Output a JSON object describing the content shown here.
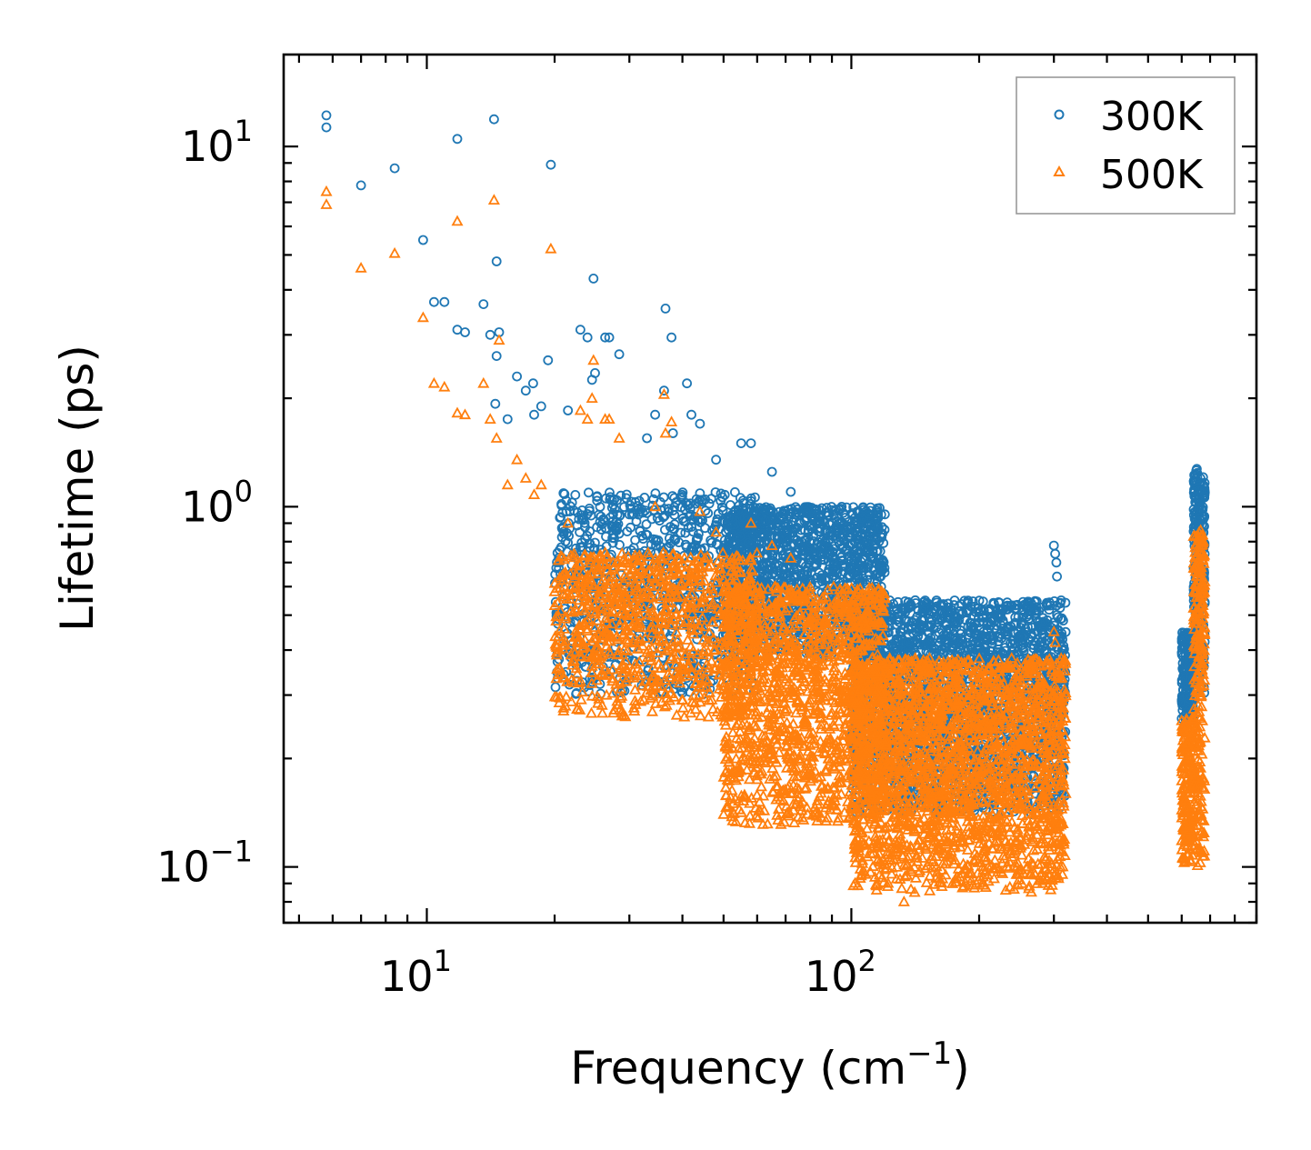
{
  "chart_data": {
    "type": "scatter",
    "xscale": "log",
    "yscale": "log",
    "xlim": [
      4.6,
      900
    ],
    "ylim": [
      0.07,
      18
    ],
    "xlabel": "Frequency (cm",
    "xlabel_sup": "−1",
    "xlabel_end": ")",
    "ylabel": "Lifetime (ps)",
    "x_ticks": [
      {
        "value": 10,
        "base": "10",
        "exp": "1"
      },
      {
        "value": 100,
        "base": "10",
        "exp": "2"
      }
    ],
    "y_ticks": [
      {
        "value": 0.1,
        "base": "10",
        "exp": "−1"
      },
      {
        "value": 1,
        "base": "10",
        "exp": "0"
      },
      {
        "value": 10,
        "base": "10",
        "exp": "1"
      }
    ],
    "legend_position": "top-right",
    "series": [
      {
        "name": "300K",
        "marker": "circle",
        "color": "#1f77b4",
        "points": [
          [
            5.8,
            12.2
          ],
          [
            5.8,
            11.3
          ],
          [
            7.0,
            7.8
          ],
          [
            8.4,
            8.7
          ],
          [
            9.8,
            5.5
          ],
          [
            10.4,
            3.7
          ],
          [
            11.0,
            3.7
          ],
          [
            11.8,
            10.5
          ],
          [
            11.8,
            3.1
          ],
          [
            12.3,
            3.05
          ],
          [
            13.6,
            3.65
          ],
          [
            14.1,
            3.0
          ],
          [
            14.4,
            11.9
          ],
          [
            14.5,
            1.93
          ],
          [
            14.6,
            2.62
          ],
          [
            14.6,
            4.8
          ],
          [
            14.8,
            3.05
          ],
          [
            15.5,
            1.75
          ],
          [
            16.3,
            2.3
          ],
          [
            17.1,
            2.1
          ],
          [
            17.8,
            2.2
          ],
          [
            17.9,
            1.8
          ],
          [
            18.6,
            1.9
          ],
          [
            19.3,
            2.55
          ],
          [
            19.6,
            8.9
          ],
          [
            21.5,
            1.85
          ],
          [
            23.0,
            3.1
          ],
          [
            23.9,
            2.95
          ],
          [
            24.5,
            2.25
          ],
          [
            24.9,
            2.35
          ],
          [
            24.7,
            4.3
          ],
          [
            26.3,
            2.95
          ],
          [
            26.9,
            2.95
          ],
          [
            28.4,
            2.65
          ],
          [
            36.5,
            3.55
          ],
          [
            37.7,
            2.95
          ],
          [
            41.0,
            2.2
          ],
          [
            36.2,
            2.1
          ],
          [
            34.5,
            1.8
          ],
          [
            42.0,
            1.8
          ],
          [
            44.0,
            1.7
          ],
          [
            38.0,
            1.6
          ],
          [
            33.0,
            1.55
          ],
          [
            48.0,
            1.35
          ],
          [
            55.0,
            1.5
          ],
          [
            58.0,
            1.5
          ],
          [
            65.0,
            1.25
          ],
          [
            72.0,
            1.1
          ],
          [
            78.0,
            0.97
          ],
          [
            90.0,
            0.72
          ],
          [
            100.0,
            0.68
          ],
          [
            105.0,
            0.62
          ],
          [
            118.0,
            0.5
          ],
          [
            128.0,
            0.47
          ],
          [
            145.0,
            0.3
          ],
          [
            178.0,
            0.48
          ],
          [
            212.0,
            0.38
          ],
          [
            232.0,
            0.38
          ],
          [
            300.0,
            0.78
          ],
          [
            302.0,
            0.74
          ],
          [
            304.0,
            0.7
          ],
          [
            305.0,
            0.64
          ]
        ]
      },
      {
        "name": "500K",
        "marker": "triangle",
        "color": "#ff7f0e",
        "points": [
          [
            5.8,
            7.5
          ],
          [
            5.8,
            6.9
          ],
          [
            7.0,
            4.6
          ],
          [
            8.4,
            5.05
          ],
          [
            9.8,
            3.35
          ],
          [
            10.4,
            2.2
          ],
          [
            11.0,
            2.15
          ],
          [
            11.8,
            6.2
          ],
          [
            11.8,
            1.82
          ],
          [
            12.3,
            1.8
          ],
          [
            13.6,
            2.2
          ],
          [
            14.1,
            1.75
          ],
          [
            14.4,
            7.1
          ],
          [
            14.6,
            1.55
          ],
          [
            14.8,
            2.9
          ],
          [
            15.5,
            1.15
          ],
          [
            16.3,
            1.35
          ],
          [
            17.1,
            1.2
          ],
          [
            17.9,
            1.08
          ],
          [
            18.6,
            1.15
          ],
          [
            19.6,
            5.2
          ],
          [
            21.5,
            0.9
          ],
          [
            23.0,
            1.85
          ],
          [
            23.9,
            1.75
          ],
          [
            24.5,
            2.0
          ],
          [
            24.7,
            2.55
          ],
          [
            26.3,
            1.75
          ],
          [
            26.9,
            1.75
          ],
          [
            28.4,
            1.55
          ],
          [
            36.2,
            2.05
          ],
          [
            37.7,
            1.72
          ],
          [
            36.5,
            1.6
          ],
          [
            34.5,
            1.0
          ],
          [
            44.0,
            0.97
          ],
          [
            48.0,
            0.85
          ],
          [
            58.0,
            0.9
          ],
          [
            65.0,
            0.78
          ],
          [
            72.0,
            0.72
          ],
          [
            78.0,
            0.5
          ],
          [
            88.0,
            0.44
          ],
          [
            100.0,
            0.4
          ],
          [
            128.0,
            0.3
          ],
          [
            133.0,
            0.08
          ],
          [
            178.0,
            0.29
          ],
          [
            212.0,
            0.22
          ],
          [
            300.0,
            0.45
          ],
          [
            302.0,
            0.42
          ],
          [
            665.0,
            0.86
          ],
          [
            668.0,
            0.8
          ]
        ]
      }
    ],
    "band_seed": [
      {
        "x0": 20,
        "x1": 60,
        "y_lo": 0.3,
        "y_hi": 1.1,
        "series": 0,
        "count": 900
      },
      {
        "x0": 50,
        "x1": 120,
        "y_lo": 0.38,
        "y_hi": 1.0,
        "series": 0,
        "count": 1400
      },
      {
        "x0": 100,
        "x1": 320,
        "y_lo": 0.14,
        "y_hi": 0.55,
        "series": 0,
        "count": 2200
      },
      {
        "x0": 20,
        "x1": 60,
        "y_lo": 0.26,
        "y_hi": 0.75,
        "series": 1,
        "count": 900
      },
      {
        "x0": 50,
        "x1": 120,
        "y_lo": 0.13,
        "y_hi": 0.6,
        "series": 1,
        "count": 1400
      },
      {
        "x0": 100,
        "x1": 320,
        "y_lo": 0.085,
        "y_hi": 0.38,
        "series": 1,
        "count": 2200
      }
    ],
    "high_freq_clusters": [
      {
        "x0": 600,
        "x1": 640,
        "y_lo": 0.25,
        "y_hi": 0.45,
        "series": 0,
        "count": 180
      },
      {
        "x0": 640,
        "x1": 680,
        "y_lo": 0.3,
        "y_hi": 1.3,
        "series": 0,
        "count": 260
      },
      {
        "x0": 600,
        "x1": 640,
        "y_lo": 0.1,
        "y_hi": 0.26,
        "series": 1,
        "count": 180
      },
      {
        "x0": 640,
        "x1": 680,
        "y_lo": 0.1,
        "y_hi": 0.85,
        "series": 1,
        "count": 260
      }
    ]
  }
}
